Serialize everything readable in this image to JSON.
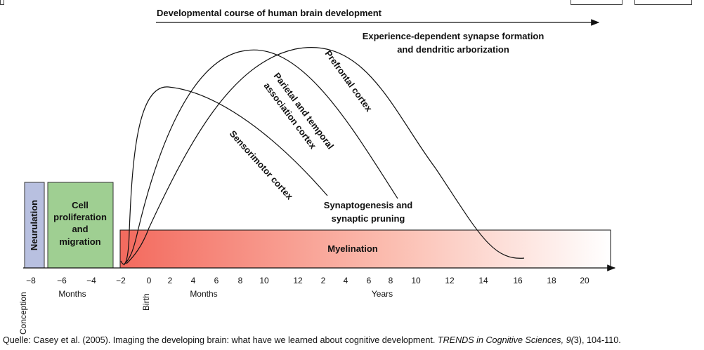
{
  "title": "Developmental course of human brain development",
  "top_right_label": "Experience-dependent synapse formation",
  "top_right_label_2": "and dendritic arborization",
  "curves": {
    "prefrontal": "Prefrontal cortex",
    "parietal_1": "Parietal and temporal",
    "parietal_2": "association cortex",
    "sensorimotor": "Sensorimotor cortex"
  },
  "synapto_1": "Synaptogenesis and",
  "synapto_2": "synaptic pruning",
  "myelination": "Myelination",
  "neurulation": "Neurulation",
  "cell_1": "Cell",
  "cell_2": "proliferation",
  "cell_3": "and",
  "cell_4": "migration",
  "ticks_prenatal": [
    "−8",
    "−6",
    "−4",
    "−2"
  ],
  "ticks_months": [
    "0",
    "2",
    "4",
    "6",
    "8",
    "10",
    "12"
  ],
  "ticks_years": [
    "2",
    "4",
    "6",
    "8",
    "10",
    "12",
    "14",
    "16",
    "18",
    "20"
  ],
  "unit_months_prenatal": "Months",
  "unit_months": "Months",
  "unit_years": "Years",
  "conception": "Conception",
  "birth": "Birth",
  "citation": {
    "pre": "Quelle: Casey et al. (2005). Imaging the developing brain: what have we learned about cognitive development. ",
    "journal": "TRENDS in Cognitive Sciences, 9(",
    "post": "3), 104-110."
  },
  "colors": {
    "neurulation": "#b8c0e0",
    "cell": "#9fcf92",
    "myelin_start": "#f36a5e",
    "myelin_end": "#ffffff"
  }
}
